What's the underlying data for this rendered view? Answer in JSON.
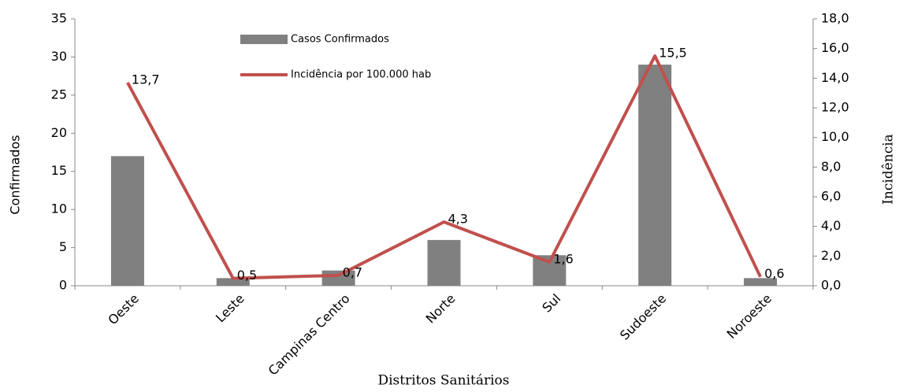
{
  "chart_data": {
    "type": "bar",
    "categories": [
      "Oeste",
      "Leste",
      "Campinas Centro",
      "Norte",
      "Sul",
      "Sudoeste",
      "Noroeste"
    ],
    "series": [
      {
        "name": "Casos Confirmados",
        "type": "bar",
        "color": "#808080",
        "values": [
          17,
          1,
          2,
          6,
          4,
          29,
          1
        ]
      },
      {
        "name": "Incidência por 100.000 hab",
        "type": "line",
        "axis": "y2",
        "color": "#c0504d",
        "values": [
          13.7,
          0.5,
          0.7,
          4.3,
          1.6,
          15.5,
          0.6
        ],
        "value_labels": [
          "13,7",
          "0,5",
          "0,7",
          "4,3",
          "1,6",
          "15,5",
          "0,6"
        ]
      }
    ],
    "ylim": [
      0,
      35
    ],
    "yticks": [
      0,
      5,
      10,
      15,
      20,
      25,
      30,
      35
    ],
    "y2lim": [
      0,
      18
    ],
    "y2ticks": [
      {
        "value": 0,
        "label": "0,0"
      },
      {
        "value": 2,
        "label": "2,0"
      },
      {
        "value": 4,
        "label": "4,0"
      },
      {
        "value": 6,
        "label": "6,0"
      },
      {
        "value": 8,
        "label": "8,0"
      },
      {
        "value": 10,
        "label": "10,0"
      },
      {
        "value": 12,
        "label": "12,0"
      },
      {
        "value": 14,
        "label": "14,0"
      },
      {
        "value": 16,
        "label": "16,0"
      },
      {
        "value": 18,
        "label": "18,0"
      }
    ],
    "ylabel": "Confirmados",
    "y2label": "Incidência",
    "xlabel": "Distritos Sanitários",
    "grid": false,
    "legend": "top"
  }
}
